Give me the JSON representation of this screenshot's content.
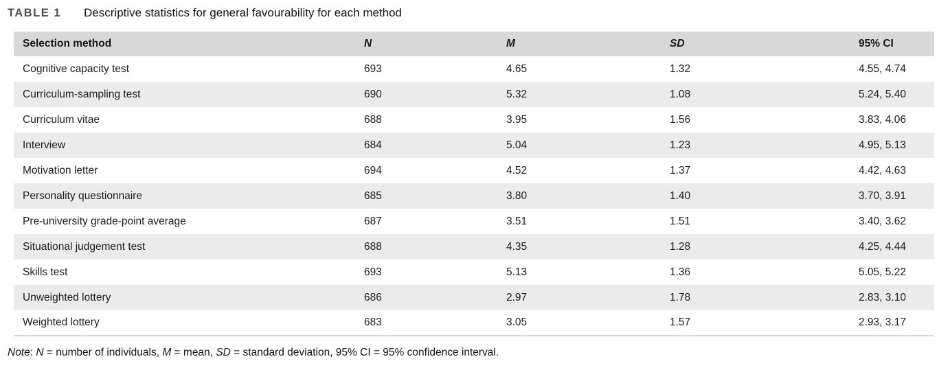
{
  "colors": {
    "header_bg": "#d8d8d8",
    "row_alt_bg": "#ebebeb",
    "row_bg": "#ffffff",
    "border_color": "#d9d9d9",
    "label_color": "#4d4d4d",
    "text_color": "#1a1a1a"
  },
  "table": {
    "label": "TABLE 1",
    "caption": "Descriptive statistics for general favourability for each method",
    "columns": [
      {
        "label": "Selection method",
        "italic": false
      },
      {
        "label": "N",
        "italic": true
      },
      {
        "label": "M",
        "italic": true
      },
      {
        "label": "SD",
        "italic": true
      },
      {
        "label": "95% CI",
        "italic": false
      }
    ],
    "rows": [
      [
        "Cognitive capacity test",
        "693",
        "4.65",
        "1.32",
        "4.55, 4.74"
      ],
      [
        "Curriculum-sampling test",
        "690",
        "5.32",
        "1.08",
        "5.24, 5.40"
      ],
      [
        "Curriculum vitae",
        "688",
        "3.95",
        "1.56",
        "3.83, 4.06"
      ],
      [
        "Interview",
        "684",
        "5.04",
        "1.23",
        "4.95, 5.13"
      ],
      [
        "Motivation letter",
        "694",
        "4.52",
        "1.37",
        "4.42, 4.63"
      ],
      [
        "Personality questionnaire",
        "685",
        "3.80",
        "1.40",
        "3.70, 3.91"
      ],
      [
        "Pre-university grade-point average",
        "687",
        "3.51",
        "1.51",
        "3.40, 3.62"
      ],
      [
        "Situational judgement test",
        "688",
        "4.35",
        "1.28",
        "4.25, 4.44"
      ],
      [
        "Skills test",
        "693",
        "5.13",
        "1.36",
        "5.05, 5.22"
      ],
      [
        "Unweighted lottery",
        "686",
        "2.97",
        "1.78",
        "2.83, 3.10"
      ],
      [
        "Weighted lottery",
        "683",
        "3.05",
        "1.57",
        "2.93, 3.17"
      ]
    ],
    "note_segments": [
      {
        "text": "Note",
        "italic": true
      },
      {
        "text": ": ",
        "italic": false
      },
      {
        "text": "N",
        "italic": true
      },
      {
        "text": " = number of individuals, ",
        "italic": false
      },
      {
        "text": "M",
        "italic": true
      },
      {
        "text": " = mean, ",
        "italic": false
      },
      {
        "text": "SD",
        "italic": true
      },
      {
        "text": " = standard deviation, 95% CI = 95% confidence interval.",
        "italic": false
      }
    ]
  }
}
